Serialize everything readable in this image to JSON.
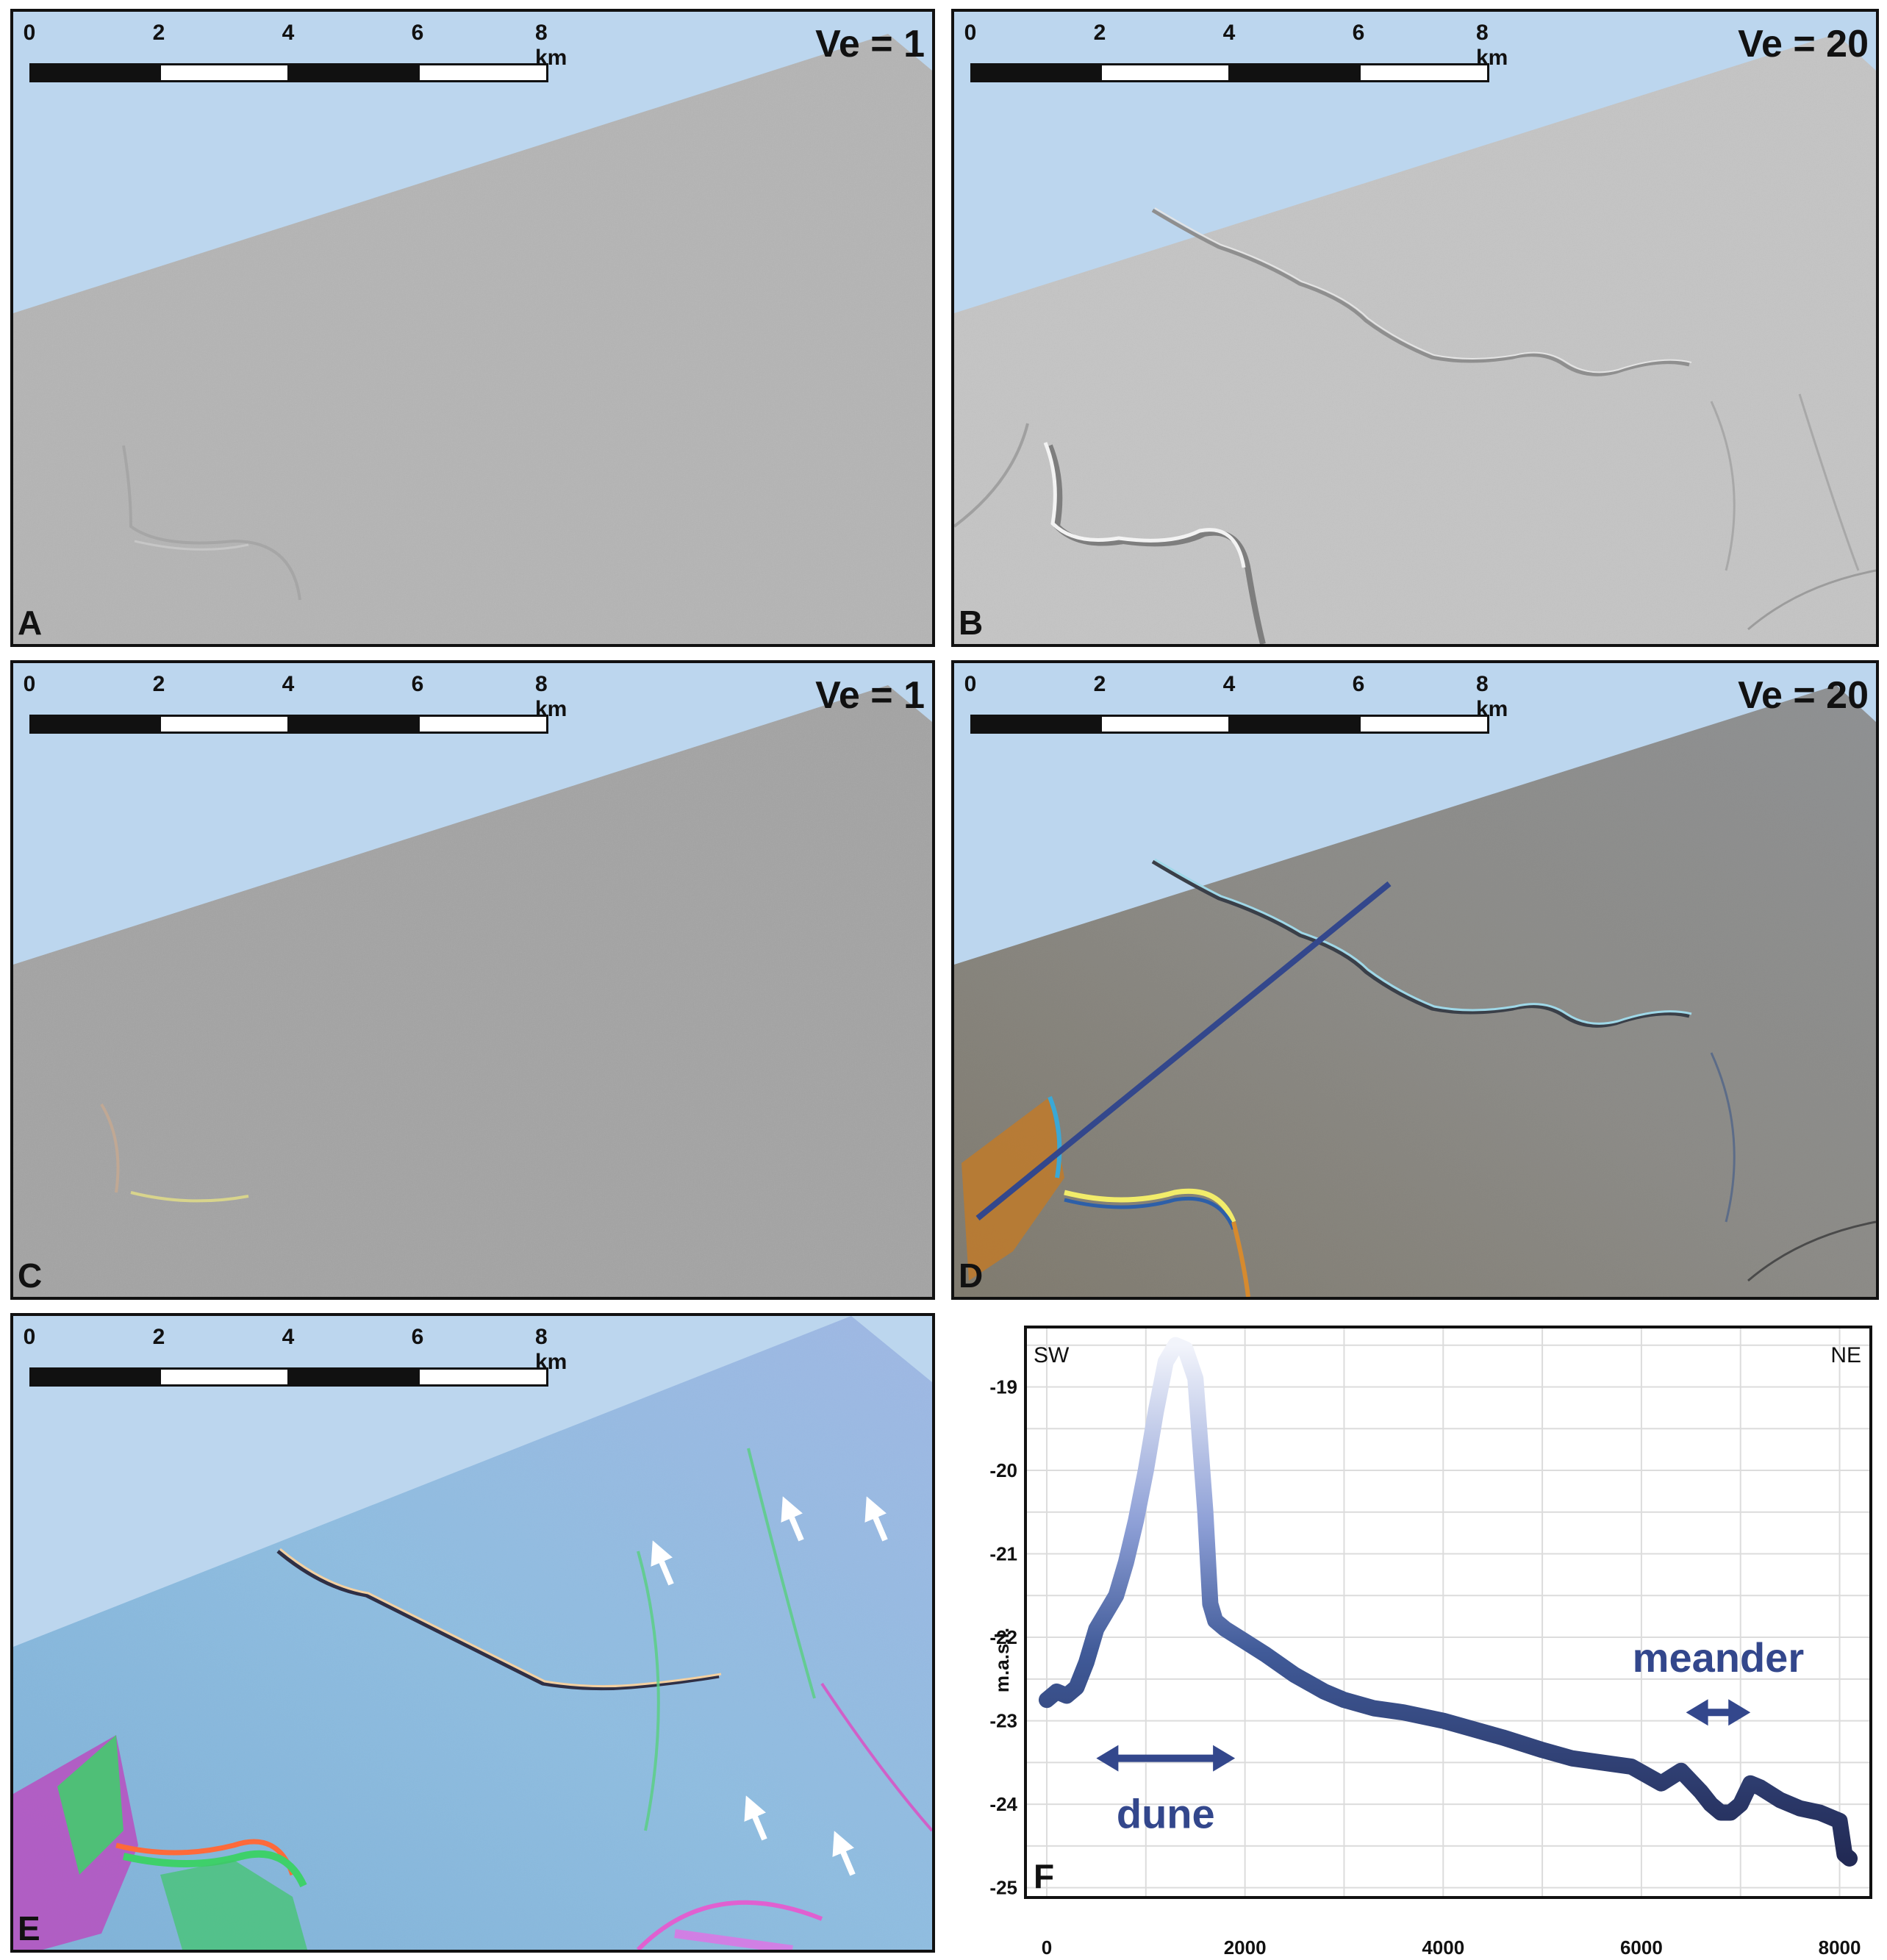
{
  "scale_bar": {
    "ticks": [
      "0",
      "2",
      "4",
      "6",
      "8 km"
    ]
  },
  "panels": [
    {
      "letter": "A",
      "ve": "Ve = 1"
    },
    {
      "letter": "B",
      "ve": "Ve = 20"
    },
    {
      "letter": "C",
      "ve": "Ve = 1"
    },
    {
      "letter": "D",
      "ve": "Ve = 20"
    },
    {
      "letter": "E",
      "ve": ""
    }
  ],
  "colors": {
    "sky": "#bcd6ee",
    "profile_line": "#33478c",
    "annotation": "#33478c"
  },
  "icons": {
    "arrow": "up-right-arrow-icon",
    "double_arrow": "double-headed-arrow-icon"
  },
  "chart_data": {
    "type": "line",
    "panel_letter": "F",
    "title": "",
    "xlabel": "",
    "ylabel": "m.a.s.l.",
    "xlim": [
      -200,
      8300
    ],
    "ylim": [
      -25.1,
      -18.3
    ],
    "xticks": [
      0,
      2000,
      4000,
      6000,
      8000
    ],
    "xtick_labels": [
      "0",
      "2000",
      "4000",
      "6000",
      "8000"
    ],
    "yticks": [
      -19,
      -20,
      -21,
      -22,
      -23,
      -24,
      -25
    ],
    "ytick_labels": [
      "-19",
      "-20",
      "-21",
      "-22",
      "-23",
      "-24",
      "-25"
    ],
    "corner_left": "SW",
    "corner_right": "NE",
    "grid": true,
    "series": [
      {
        "x": [
          0,
          100,
          200,
          300,
          400,
          500,
          600,
          700,
          800,
          900,
          1000,
          1100,
          1200,
          1300,
          1400,
          1500,
          1600,
          1650,
          1700,
          1800,
          2000,
          2200,
          2500,
          2800,
          3000,
          3300,
          3600,
          4000,
          4300,
          4600,
          5000,
          5300,
          5600,
          5900,
          6200,
          6400,
          6600,
          6700,
          6800,
          6900,
          7000,
          7100,
          7200,
          7400,
          7600,
          7800,
          7900,
          8000,
          8050,
          8100
        ],
        "y": [
          -22.75,
          -22.65,
          -22.7,
          -22.6,
          -22.3,
          -21.9,
          -21.7,
          -21.5,
          -21.1,
          -20.6,
          -20.0,
          -19.3,
          -18.7,
          -18.5,
          -18.55,
          -18.9,
          -20.5,
          -21.6,
          -21.8,
          -21.9,
          -22.05,
          -22.2,
          -22.45,
          -22.65,
          -22.75,
          -22.85,
          -22.9,
          -23.0,
          -23.1,
          -23.2,
          -23.35,
          -23.45,
          -23.5,
          -23.55,
          -23.75,
          -23.6,
          -23.85,
          -24.0,
          -24.1,
          -24.1,
          -24.0,
          -23.75,
          -23.8,
          -23.95,
          -24.05,
          -24.1,
          -24.15,
          -24.2,
          -24.6,
          -24.65
        ]
      }
    ],
    "annotations": [
      {
        "label": "dune",
        "x_range": [
          500,
          1900
        ],
        "y": -23.45
      },
      {
        "label": "meander",
        "x_range": [
          6450,
          7100
        ],
        "y": -22.9
      }
    ]
  }
}
